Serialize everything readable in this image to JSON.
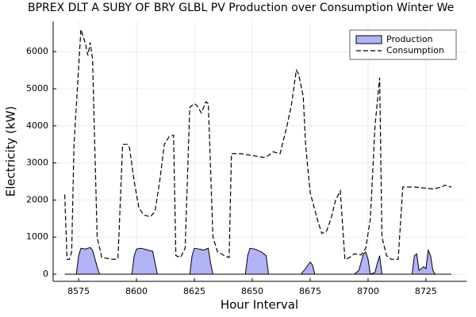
{
  "chart_data": {
    "type": "area-line",
    "title": "BPREX DLT A SUBY OF BRY GLBL PV Production over Consumption Winter We",
    "x_label": "Hour Interval",
    "y_label": "Electricity (kW)",
    "xlim": [
      8564,
      8742.5
    ],
    "ylim": [
      -192,
      6816
    ],
    "xticks": [
      8575,
      8600,
      8625,
      8650,
      8675,
      8700,
      8725
    ],
    "yticks": [
      0,
      1000,
      2000,
      3000,
      4000,
      5000,
      6000
    ],
    "grid": true,
    "legend": "top-right",
    "series": [
      {
        "name": "Production",
        "kind": "area",
        "color": "#b2b2f7",
        "x": [
          8569,
          8574,
          8575,
          8576,
          8578,
          8580,
          8581,
          8583,
          8584,
          8598,
          8599,
          8600,
          8602,
          8605,
          8607,
          8608,
          8609,
          8623,
          8624,
          8625,
          8627,
          8629,
          8631,
          8632,
          8633,
          8647,
          8648,
          8649,
          8651,
          8654,
          8656,
          8657,
          8671,
          8673,
          8675,
          8676,
          8677,
          8694,
          8696,
          8698,
          8699,
          8700,
          8701,
          8703,
          8704,
          8705,
          8706,
          8719,
          8720,
          8721,
          8722,
          8723,
          8724,
          8725,
          8726,
          8727,
          8728,
          8729,
          8736
        ],
        "values": [
          0,
          0,
          500,
          700,
          680,
          720,
          650,
          200,
          0,
          0,
          500,
          680,
          700,
          650,
          620,
          300,
          0,
          0,
          500,
          700,
          680,
          650,
          700,
          300,
          0,
          0,
          500,
          700,
          680,
          600,
          500,
          0,
          0,
          150,
          330,
          250,
          0,
          0,
          100,
          550,
          600,
          400,
          0,
          50,
          300,
          500,
          0,
          0,
          500,
          550,
          100,
          150,
          200,
          150,
          650,
          500,
          100,
          0,
          0
        ]
      },
      {
        "name": "Consumption",
        "kind": "line",
        "color": "#000000",
        "x": [
          8569,
          8570,
          8571,
          8572,
          8573,
          8576,
          8577,
          8578,
          8579,
          8580,
          8581,
          8583,
          8585,
          8590,
          8592,
          8594,
          8596,
          8597,
          8599,
          8601,
          8603,
          8606,
          8608,
          8610,
          8612,
          8614,
          8616,
          8617,
          8619,
          8621,
          8623,
          8625,
          8626,
          8628,
          8630,
          8631,
          8633,
          8635,
          8638,
          8640,
          8641,
          8645,
          8650,
          8655,
          8657,
          8659,
          8662,
          8665,
          8667,
          8669,
          8670,
          8672,
          8673,
          8675,
          8678,
          8680,
          8682,
          8684,
          8686,
          8688,
          8690,
          8692,
          8694,
          8697,
          8699,
          8701,
          8703,
          8705,
          8706,
          8708,
          8710,
          8713,
          8715,
          8720,
          8725,
          8728,
          8732,
          8733,
          8736
        ],
        "values": [
          2150,
          400,
          400,
          600,
          3500,
          6600,
          6400,
          6200,
          5900,
          6250,
          5800,
          1000,
          450,
          400,
          420,
          3500,
          3500,
          3400,
          2500,
          1800,
          1600,
          1550,
          1700,
          2500,
          3500,
          3700,
          3750,
          500,
          450,
          700,
          4500,
          4600,
          4550,
          4350,
          4650,
          4600,
          1000,
          600,
          500,
          450,
          3250,
          3250,
          3200,
          3150,
          3200,
          3300,
          3250,
          4000,
          4600,
          5500,
          5400,
          4800,
          3500,
          2200,
          1500,
          1100,
          1150,
          1500,
          2000,
          2250,
          400,
          450,
          550,
          520,
          700,
          1500,
          4000,
          5300,
          1000,
          500,
          400,
          400,
          2350,
          2350,
          2320,
          2300,
          2350,
          2400,
          2350
        ]
      }
    ]
  }
}
